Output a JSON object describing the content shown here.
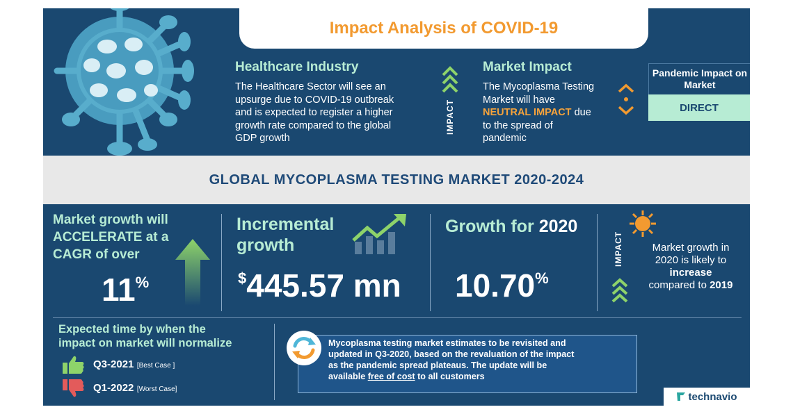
{
  "header": {
    "title": "Impact Analysis of COVID-19"
  },
  "healthcare": {
    "title": "Healthcare Industry",
    "lines": [
      "The Healthcare Sector will see an",
      "upsurge due to COVID-19 outbreak",
      "and is expected to register a higher",
      "growth rate compared to the global",
      "GDP growth"
    ]
  },
  "impact_label": "IMPACT",
  "market_impact": {
    "title": "Market Impact",
    "line1": "The Mycoplasma Testing",
    "line2": "Market will have",
    "neutral": "NEUTRAL IMPACT",
    "due": " due",
    "line4": "to the spread of",
    "line5": "pandemic"
  },
  "pandemic": {
    "label": "Pandemic Impact on Market",
    "value": "DIRECT"
  },
  "banner": {
    "title": "GLOBAL MYCOPLASMA TESTING MARKET 2020-2024"
  },
  "cagr": {
    "text_lines": [
      "Market growth will",
      "ACCELERATE at a",
      "CAGR of over"
    ],
    "value": "11",
    "unit": "%"
  },
  "incremental": {
    "line1": "Incremental",
    "line2": "growth",
    "currency": "$",
    "value": "445.57 mn"
  },
  "growth2020": {
    "label": "Growth for ",
    "year": "2020",
    "value": "10.70",
    "unit": "%"
  },
  "impact2": {
    "label": "IMPACT",
    "line1": "Market growth in",
    "line2": "2020 is likely to",
    "increase": "increase",
    "line4a": "compared to ",
    "year": "2019"
  },
  "normalize": {
    "title_lines": [
      "Expected time by when the",
      "impact on market will normalize"
    ],
    "best": {
      "period": "Q3-2021",
      "tag": "[Best Case ]"
    },
    "worst": {
      "period": "Q1-2022",
      "tag": "[Worst Case]"
    }
  },
  "note": {
    "lines": [
      "Mycoplasma testing market estimates to be revisited and",
      "updated in Q3-2020, based on the revaluation of the impact",
      "as the pandemic spread plateaus. The update will be"
    ],
    "line4a": "available ",
    "free": "free of cost",
    "line4b": " to all customers"
  },
  "brand": {
    "name": "technavio"
  },
  "colors": {
    "navy": "#1a4870",
    "mint": "#b7ecd4",
    "orange": "#f29a30",
    "green": "#8ed36a",
    "red": "#e35b5b"
  }
}
